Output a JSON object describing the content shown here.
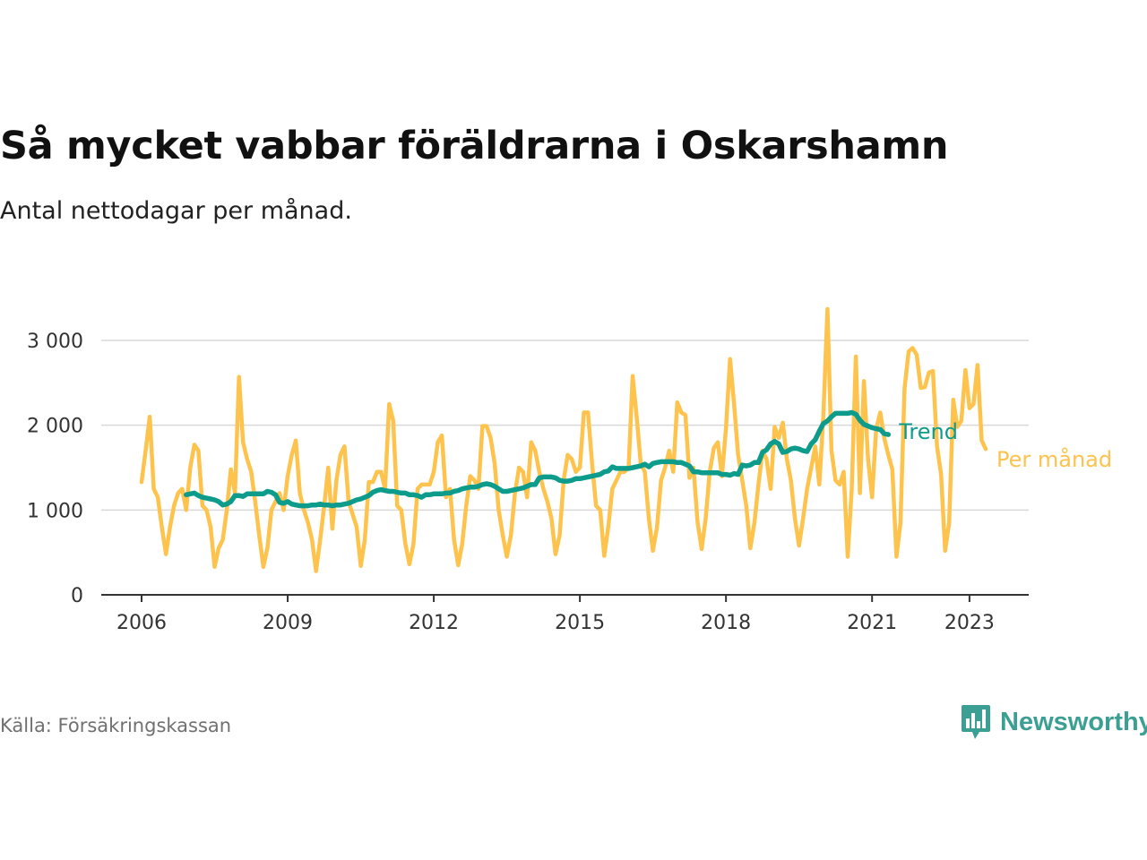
{
  "header": {
    "title": "Så mycket vabbar föräldrarna i Oskarshamn",
    "subtitle": "Antal nettodagar per månad."
  },
  "footer": {
    "source": "Källa: Försäkringskassan",
    "brand": "Newsworthy",
    "brand_icon": "bar-chart-speech-bubble-icon"
  },
  "colors": {
    "monthly": "#fec34d",
    "trend": "#0d9c8b",
    "grid": "#d9d9d9",
    "axis": "#333333",
    "brand": "#3c9f93"
  },
  "chart_data": {
    "type": "line",
    "title": "Så mycket vabbar föräldrarna i Oskarshamn",
    "subtitle": "Antal nettodagar per månad.",
    "xlabel": "",
    "ylabel": "",
    "x_ticks": [
      "2006",
      "2009",
      "2012",
      "2015",
      "2018",
      "2021",
      "2023"
    ],
    "y_ticks": [
      {
        "value": 0,
        "label": "0"
      },
      {
        "value": 1000,
        "label": "1 000"
      },
      {
        "value": 2000,
        "label": "2 000"
      },
      {
        "value": 3000,
        "label": "3 000"
      }
    ],
    "xlim": [
      "2006-01",
      "2023-05"
    ],
    "ylim": [
      0,
      3000
    ],
    "grid": true,
    "legend": "line-end labels",
    "series": [
      {
        "name": "Per månad",
        "start": "2006-01",
        "frequency": "monthly",
        "values": [
          1330,
          1700,
          2100,
          1250,
          1150,
          800,
          480,
          800,
          1050,
          1200,
          1250,
          1000,
          1500,
          1770,
          1700,
          1050,
          1000,
          800,
          330,
          550,
          650,
          1000,
          1480,
          1200,
          2570,
          1800,
          1600,
          1450,
          1100,
          700,
          330,
          550,
          1000,
          1100,
          1200,
          1000,
          1400,
          1650,
          1820,
          1200,
          1000,
          850,
          650,
          280,
          650,
          1050,
          1500,
          780,
          1350,
          1650,
          1750,
          1100,
          950,
          800,
          340,
          650,
          1330,
          1330,
          1450,
          1450,
          1250,
          2250,
          2050,
          1050,
          1000,
          600,
          360,
          600,
          1250,
          1300,
          1300,
          1300,
          1450,
          1800,
          1880,
          1150,
          1250,
          650,
          350,
          600,
          1050,
          1400,
          1350,
          1250,
          1990,
          1990,
          1850,
          1550,
          1000,
          700,
          450,
          700,
          1200,
          1500,
          1450,
          1150,
          1800,
          1700,
          1450,
          1250,
          1100,
          900,
          480,
          700,
          1350,
          1650,
          1600,
          1450,
          1500,
          2150,
          2150,
          1550,
          1050,
          1000,
          460,
          800,
          1250,
          1350,
          1450,
          1450,
          1500,
          2580,
          2100,
          1550,
          1450,
          900,
          520,
          800,
          1350,
          1500,
          1700,
          1450,
          2270,
          2150,
          2120,
          1380,
          1500,
          850,
          540,
          900,
          1450,
          1730,
          1800,
          1400,
          1970,
          2780,
          2250,
          1650,
          1350,
          1050,
          550,
          850,
          1300,
          1700,
          1600,
          1250,
          1980,
          1850,
          2030,
          1600,
          1350,
          900,
          580,
          900,
          1250,
          1500,
          1750,
          1300,
          2100,
          3370,
          1700,
          1350,
          1300,
          1450,
          450,
          1250,
          2810,
          1200,
          2520,
          1600,
          1150,
          1950,
          2150,
          1850,
          1650,
          1480,
          450,
          850,
          2430,
          2870,
          2910,
          2830,
          2440,
          2450,
          2620,
          2640,
          1750,
          1420,
          520,
          850,
          2300,
          1980,
          2050,
          2650,
          2200,
          2250,
          2710,
          1820,
          1720
        ]
      },
      {
        "name": "Trend",
        "start": "2006-12",
        "frequency": "monthly",
        "values": [
          1180,
          1190,
          1200,
          1170,
          1150,
          1140,
          1130,
          1120,
          1100,
          1060,
          1070,
          1100,
          1170,
          1170,
          1160,
          1190,
          1190,
          1190,
          1190,
          1190,
          1220,
          1210,
          1180,
          1090,
          1080,
          1100,
          1070,
          1060,
          1050,
          1050,
          1050,
          1060,
          1060,
          1070,
          1060,
          1060,
          1050,
          1060,
          1060,
          1070,
          1080,
          1100,
          1120,
          1130,
          1150,
          1170,
          1210,
          1230,
          1240,
          1230,
          1220,
          1220,
          1210,
          1200,
          1200,
          1180,
          1180,
          1170,
          1150,
          1180,
          1180,
          1190,
          1190,
          1190,
          1200,
          1200,
          1220,
          1230,
          1250,
          1260,
          1270,
          1270,
          1280,
          1300,
          1310,
          1300,
          1280,
          1250,
          1220,
          1220,
          1230,
          1240,
          1250,
          1260,
          1280,
          1300,
          1300,
          1380,
          1390,
          1390,
          1390,
          1380,
          1350,
          1340,
          1340,
          1350,
          1370,
          1370,
          1380,
          1390,
          1400,
          1410,
          1420,
          1450,
          1460,
          1510,
          1490,
          1490,
          1490,
          1490,
          1500,
          1510,
          1520,
          1540,
          1510,
          1550,
          1560,
          1570,
          1570,
          1570,
          1570,
          1560,
          1560,
          1540,
          1520,
          1450,
          1450,
          1440,
          1440,
          1440,
          1440,
          1440,
          1420,
          1420,
          1410,
          1430,
          1420,
          1530,
          1520,
          1530,
          1560,
          1560,
          1680,
          1710,
          1780,
          1810,
          1780,
          1680,
          1690,
          1720,
          1730,
          1720,
          1700,
          1690,
          1780,
          1830,
          1930,
          2020,
          2050,
          2100,
          2140,
          2140,
          2140,
          2140,
          2150,
          2130,
          2060,
          2010,
          1990,
          1970,
          1960,
          1950,
          1900,
          1890
        ]
      }
    ]
  }
}
